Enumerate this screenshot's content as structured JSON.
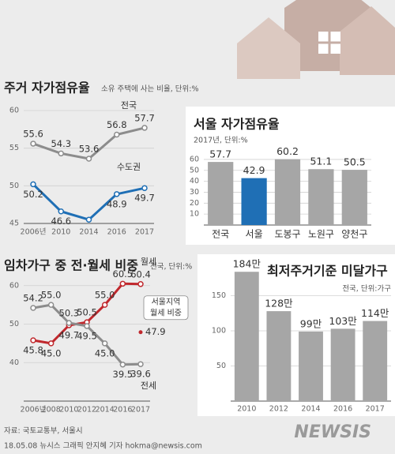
{
  "chart_data": [
    {
      "type": "line",
      "title": "주거 자가점유율",
      "subtitle": "소유 주택에 사는 비율, 단위:%",
      "categories": [
        "2006년",
        "2010",
        "2014",
        "2016",
        "2017"
      ],
      "series": [
        {
          "name": "전국",
          "color": "#8c8c8c",
          "values": [
            55.6,
            54.3,
            53.6,
            56.8,
            57.7
          ]
        },
        {
          "name": "수도권",
          "color": "#1f6fb5",
          "values": [
            50.2,
            46.6,
            45.5,
            48.9,
            49.7
          ],
          "value_labels": [
            "50.2",
            "46.6",
            null,
            "48.9",
            "49.7"
          ]
        }
      ],
      "ylim": [
        45,
        60
      ],
      "yticks": [
        45,
        50,
        55,
        60
      ],
      "grid": true
    },
    {
      "type": "bar",
      "title": "서울 자가점유율",
      "subtitle": "2017년, 단위:%",
      "categories": [
        "전국",
        "서울",
        "도봉구",
        "노원구",
        "양천구"
      ],
      "values": [
        57.7,
        42.9,
        60.2,
        51.1,
        50.5
      ],
      "colors": [
        "#a6a6a6",
        "#1f6fb5",
        "#a6a6a6",
        "#a6a6a6",
        "#a6a6a6"
      ],
      "ylim": [
        0,
        65
      ],
      "yticks": [
        10,
        20,
        30,
        40,
        50,
        60
      ],
      "grid": true
    },
    {
      "type": "line",
      "title": "임차가구 중 전·월세 비중",
      "subtitle": "전국, 단위:%",
      "categories": [
        "2006년",
        "2008",
        "2010",
        "2012",
        "2014",
        "2016",
        "2017"
      ],
      "series": [
        {
          "name": "월세",
          "color": "#c0282d",
          "values": [
            45.8,
            45.0,
            49.7,
            50.5,
            55.0,
            60.5,
            60.4
          ],
          "value_labels": [
            "45.8",
            "45.0",
            "49.7",
            "50.5",
            "55.0",
            "60.5",
            "60.4"
          ]
        },
        {
          "name": "전세",
          "color": "#8c8c8c",
          "values": [
            54.2,
            55.0,
            50.3,
            49.5,
            45.0,
            39.5,
            39.6
          ],
          "value_labels": [
            "54.2",
            "55.0",
            "50.3",
            "49.5",
            "45.0",
            "39.5",
            "39.6"
          ]
        }
      ],
      "annotation": {
        "text": [
          "서울지역",
          "월세 비중"
        ],
        "value": 47.9
      },
      "ylim": [
        30,
        62
      ],
      "yticks": [
        40,
        50,
        60
      ],
      "grid": true
    },
    {
      "type": "bar",
      "title": "최저주거기준 미달가구",
      "subtitle": "전국, 단위:가구",
      "categories": [
        "2010",
        "2012",
        "2014",
        "2016",
        "2017"
      ],
      "values": [
        184,
        128,
        99,
        103,
        114
      ],
      "value_labels": [
        "184만",
        "128만",
        "99만",
        "103만",
        "114만"
      ],
      "color": "#a6a6a6",
      "ylim": [
        0,
        200
      ],
      "yticks": [
        50,
        100,
        150
      ],
      "grid": true
    }
  ],
  "source": "자료: 국토교통부, 서울시",
  "credit": "18.05.08 뉴시스 그래픽 안지혜 기자 hokma@newsis.com",
  "logo": "NEWSIS"
}
